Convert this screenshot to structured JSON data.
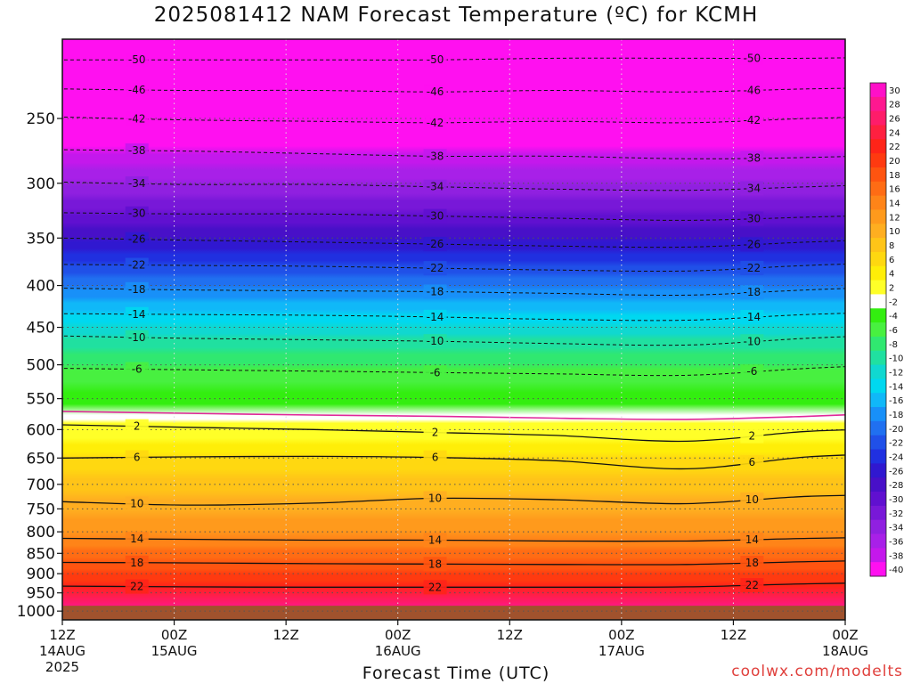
{
  "chart_data": {
    "type": "heatmap",
    "title": "2025081412 NAM Forecast Temperature (ºC) for KCMH",
    "xlabel": "Forecast Time (UTC)",
    "ylabel": "",
    "credit": "coolwx.com/modelts",
    "y_scale": "log",
    "y_inverted": true,
    "ylim": [
      1025,
      200
    ],
    "y_ticks": [
      250,
      300,
      350,
      400,
      450,
      500,
      550,
      600,
      650,
      700,
      750,
      800,
      850,
      900,
      950,
      1000
    ],
    "x_ticks": [
      {
        "line1": "12Z",
        "line2": "14AUG",
        "line3": "2025"
      },
      {
        "line1": "00Z",
        "line2": "15AUG",
        "line3": ""
      },
      {
        "line1": "12Z",
        "line2": "",
        "line3": ""
      },
      {
        "line1": "00Z",
        "line2": "16AUG",
        "line3": ""
      },
      {
        "line1": "12Z",
        "line2": "",
        "line3": ""
      },
      {
        "line1": "00Z",
        "line2": "17AUG",
        "line3": ""
      },
      {
        "line1": "12Z",
        "line2": "",
        "line3": ""
      },
      {
        "line1": "00Z",
        "line2": "18AUG",
        "line3": ""
      }
    ],
    "ground_level_hpa": 985,
    "colorbar": {
      "labels": [
        30,
        28,
        26,
        24,
        22,
        20,
        18,
        16,
        14,
        12,
        10,
        8,
        6,
        4,
        2,
        -2,
        -4,
        -6,
        -8,
        -10,
        -12,
        -14,
        -16,
        -18,
        -20,
        -22,
        -24,
        -26,
        -28,
        -30,
        -32,
        -34,
        -36,
        -38,
        -40
      ],
      "colors": [
        "#ff10c8",
        "#ff1890",
        "#ff1c6a",
        "#ff2040",
        "#ff2418",
        "#ff3a10",
        "#ff5410",
        "#ff6c14",
        "#ff8418",
        "#ff9a1c",
        "#ffae20",
        "#ffc418",
        "#ffd810",
        "#ffee08",
        "#ffff28",
        "#ffffff",
        "#33ee10",
        "#48f040",
        "#30e870",
        "#20e0a0",
        "#10d8d0",
        "#00d8f0",
        "#10b8f8",
        "#1890f8",
        "#2070f0",
        "#2050e8",
        "#2030e0",
        "#3018d0",
        "#4810c8",
        "#6010d0",
        "#7818d8",
        "#9020e0",
        "#a820e8",
        "#c418ec",
        "#ff10f0"
      ]
    },
    "series": [
      {
        "temp": -50,
        "points": [
          [
            0,
            212
          ],
          [
            13,
            212
          ],
          [
            27,
            212
          ],
          [
            40,
            212
          ],
          [
            53,
            211
          ],
          [
            67,
            211
          ],
          [
            80,
            211
          ],
          [
            93,
            210
          ]
        ],
        "label_at": [
          [
            9,
            209
          ],
          [
            23,
            217
          ],
          [
            39,
            217
          ]
        ]
      },
      {
        "temp": -46,
        "points": [
          [
            0,
            230
          ],
          [
            13,
            231
          ],
          [
            27,
            231
          ],
          [
            40,
            232
          ],
          [
            53,
            231
          ],
          [
            67,
            232
          ],
          [
            80,
            230
          ],
          [
            93,
            229
          ]
        ],
        "label_at": [
          [
            8,
            232
          ],
          [
            24,
            238
          ],
          [
            40,
            231
          ]
        ]
      },
      {
        "temp": -42,
        "points": [
          [
            0,
            249
          ],
          [
            13,
            251
          ],
          [
            27,
            252
          ],
          [
            40,
            253
          ],
          [
            53,
            252
          ],
          [
            67,
            253
          ],
          [
            80,
            250
          ],
          [
            93,
            248
          ]
        ],
        "label_at": [
          [
            8,
            252
          ],
          [
            21,
            258
          ],
          [
            40,
            250
          ]
        ]
      },
      {
        "temp": -38,
        "points": [
          [
            0,
            273
          ],
          [
            13,
            274
          ],
          [
            27,
            276
          ],
          [
            40,
            278
          ],
          [
            53,
            278
          ],
          [
            67,
            280
          ],
          [
            80,
            279
          ],
          [
            93,
            276
          ]
        ],
        "label_at": [
          [
            9,
            277
          ],
          [
            23,
            278
          ],
          [
            42,
            285
          ]
        ]
      },
      {
        "temp": -34,
        "points": [
          [
            0,
            299
          ],
          [
            13,
            301
          ],
          [
            27,
            301
          ],
          [
            40,
            303
          ],
          [
            53,
            305
          ],
          [
            67,
            306
          ],
          [
            80,
            303
          ],
          [
            93,
            300
          ]
        ],
        "label_at": [
          [
            9,
            303
          ],
          [
            24,
            302
          ],
          [
            40,
            295
          ]
        ]
      },
      {
        "temp": -30,
        "points": [
          [
            0,
            326
          ],
          [
            13,
            327
          ],
          [
            27,
            327
          ],
          [
            40,
            329
          ],
          [
            53,
            331
          ],
          [
            67,
            333
          ],
          [
            80,
            330
          ],
          [
            93,
            327
          ]
        ],
        "label_at": [
          [
            8,
            323
          ],
          [
            27,
            332
          ],
          [
            41,
            317
          ]
        ]
      },
      {
        "temp": -26,
        "points": [
          [
            0,
            350
          ],
          [
            13,
            352
          ],
          [
            27,
            354
          ],
          [
            40,
            356
          ],
          [
            53,
            358
          ],
          [
            67,
            359
          ],
          [
            80,
            354
          ],
          [
            93,
            350
          ]
        ],
        "label_at": [
          [
            9,
            351
          ],
          [
            26,
            353
          ],
          [
            41,
            341
          ]
        ]
      },
      {
        "temp": -22,
        "points": [
          [
            0,
            377
          ],
          [
            13,
            378
          ],
          [
            27,
            379
          ],
          [
            40,
            381
          ],
          [
            53,
            383
          ],
          [
            67,
            384
          ],
          [
            80,
            378
          ],
          [
            93,
            374
          ]
        ],
        "label_at": [
          [
            11,
            378
          ],
          [
            25,
            377
          ],
          [
            41,
            357
          ]
        ]
      },
      {
        "temp": -18,
        "points": [
          [
            0,
            403
          ],
          [
            13,
            405
          ],
          [
            27,
            406
          ],
          [
            40,
            407
          ],
          [
            53,
            409
          ],
          [
            67,
            411
          ],
          [
            80,
            405
          ],
          [
            93,
            400
          ]
        ],
        "label_at": [
          [
            9,
            405
          ],
          [
            23,
            400
          ],
          [
            41,
            381
          ]
        ]
      },
      {
        "temp": -14,
        "points": [
          [
            0,
            433
          ],
          [
            13,
            434
          ],
          [
            27,
            435
          ],
          [
            40,
            437
          ],
          [
            53,
            440
          ],
          [
            67,
            441
          ],
          [
            80,
            434
          ],
          [
            93,
            430
          ]
        ],
        "label_at": [
          [
            8,
            433
          ],
          [
            21,
            433
          ],
          [
            40,
            415
          ]
        ]
      },
      {
        "temp": -10,
        "points": [
          [
            0,
            461
          ],
          [
            13,
            464
          ],
          [
            27,
            466
          ],
          [
            40,
            468
          ],
          [
            53,
            471
          ],
          [
            67,
            473
          ],
          [
            80,
            464
          ],
          [
            93,
            458
          ]
        ],
        "label_at": [
          [
            8,
            462
          ],
          [
            23,
            468
          ],
          [
            39,
            450
          ]
        ]
      },
      {
        "temp": -6,
        "points": [
          [
            0,
            505
          ],
          [
            13,
            507
          ],
          [
            27,
            509
          ],
          [
            40,
            511
          ],
          [
            53,
            513
          ],
          [
            67,
            515
          ],
          [
            80,
            505
          ],
          [
            93,
            498
          ]
        ],
        "label_at": [
          [
            9,
            504
          ],
          [
            22,
            505
          ],
          [
            36,
            496
          ]
        ]
      },
      {
        "temp": -2,
        "points": [
          [
            0,
            570
          ],
          [
            13,
            573
          ],
          [
            27,
            576
          ],
          [
            40,
            578
          ],
          [
            53,
            581
          ],
          [
            67,
            583
          ],
          [
            80,
            578
          ],
          [
            93,
            570
          ]
        ],
        "label_at": []
      },
      {
        "temp": 2,
        "points": [
          [
            0,
            592
          ],
          [
            13,
            596
          ],
          [
            27,
            600
          ],
          [
            40,
            605
          ],
          [
            53,
            610
          ],
          [
            67,
            620
          ],
          [
            80,
            603
          ],
          [
            93,
            598
          ]
        ],
        "label_at": [
          [
            8,
            562
          ],
          [
            17,
            565
          ],
          [
            27,
            600
          ],
          [
            36,
            575
          ],
          [
            40,
            598
          ]
        ]
      },
      {
        "temp": 6,
        "points": [
          [
            0,
            650
          ],
          [
            13,
            648
          ],
          [
            27,
            647
          ],
          [
            40,
            649
          ],
          [
            53,
            655
          ],
          [
            67,
            670
          ],
          [
            80,
            648
          ],
          [
            93,
            640
          ]
        ],
        "label_at": [
          [
            12,
            647
          ],
          [
            25,
            653
          ],
          [
            39,
            640
          ]
        ]
      },
      {
        "temp": 10,
        "points": [
          [
            0,
            735
          ],
          [
            13,
            742
          ],
          [
            27,
            738
          ],
          [
            40,
            728
          ],
          [
            53,
            731
          ],
          [
            67,
            739
          ],
          [
            80,
            724
          ],
          [
            93,
            720
          ]
        ],
        "label_at": [
          [
            9,
            746
          ],
          [
            23,
            693
          ],
          [
            36,
            722
          ]
        ]
      },
      {
        "temp": 14,
        "points": [
          [
            0,
            815
          ],
          [
            13,
            817
          ],
          [
            27,
            819
          ],
          [
            40,
            819
          ],
          [
            53,
            821
          ],
          [
            67,
            821
          ],
          [
            80,
            815
          ],
          [
            93,
            811
          ]
        ],
        "label_at": [
          [
            8,
            828
          ],
          [
            24,
            816
          ],
          [
            36,
            817
          ]
        ]
      },
      {
        "temp": 18,
        "points": [
          [
            0,
            872
          ],
          [
            13,
            873
          ],
          [
            27,
            875
          ],
          [
            40,
            876
          ],
          [
            53,
            877
          ],
          [
            67,
            877
          ],
          [
            80,
            870
          ],
          [
            93,
            865
          ]
        ],
        "label_at": [
          [
            9,
            877
          ],
          [
            25,
            875
          ],
          [
            39,
            870
          ]
        ]
      },
      {
        "temp": 22,
        "points": [
          [
            0,
            932
          ],
          [
            13,
            934
          ],
          [
            27,
            935
          ],
          [
            40,
            935
          ],
          [
            53,
            935
          ],
          [
            67,
            934
          ],
          [
            80,
            926
          ],
          [
            93,
            922
          ]
        ],
        "label_at": [
          [
            13,
            944
          ],
          [
            29,
            931
          ],
          [
            40,
            972
          ]
        ]
      }
    ]
  }
}
